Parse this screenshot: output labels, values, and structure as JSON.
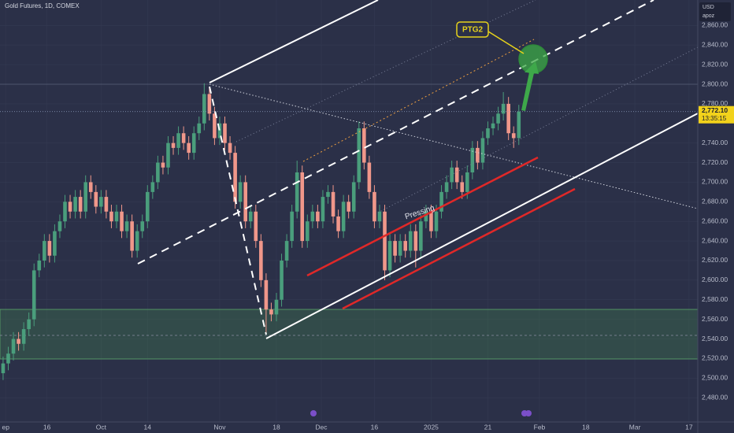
{
  "chart_data": {
    "type": "candlestick",
    "title": "Gold Futures, 1D, COMEX",
    "currency": "USD",
    "account": "apoz",
    "annotations": [
      "PTG2",
      "Pressing"
    ],
    "last_price": {
      "value": 2772.1,
      "label": "2,772.10"
    },
    "countdown": "13:35:15",
    "up_color": "#4a9e7c",
    "down_color": "#f0978a",
    "xlim": [
      -0.6,
      134.7
    ],
    "ylim": [
      2452,
      2886
    ],
    "xticks": [
      {
        "value": 0.5,
        "label": "ep"
      },
      {
        "value": 8.5,
        "label": "16"
      },
      {
        "value": 19,
        "label": "Oct"
      },
      {
        "value": 28,
        "label": "14"
      },
      {
        "value": 42,
        "label": "Nov"
      },
      {
        "value": 53,
        "label": "18"
      },
      {
        "value": 61.7,
        "label": "Dec"
      },
      {
        "value": 72,
        "label": "16"
      },
      {
        "value": 83,
        "label": "2025"
      },
      {
        "value": 94,
        "label": "21"
      },
      {
        "value": 104,
        "label": "Feb"
      },
      {
        "value": 113,
        "label": "18"
      },
      {
        "value": 122.5,
        "label": "Mar"
      },
      {
        "value": 133,
        "label": "17"
      }
    ],
    "yticks": [
      {
        "value": 2480,
        "label": "2,480.00"
      },
      {
        "value": 2500,
        "label": "2,500.00"
      },
      {
        "value": 2520,
        "label": "2,520.00"
      },
      {
        "value": 2540,
        "label": "2,540.00"
      },
      {
        "value": 2560,
        "label": "2,560.00"
      },
      {
        "value": 2580,
        "label": "2,580.00"
      },
      {
        "value": 2600,
        "label": "2,600.00"
      },
      {
        "value": 2620,
        "label": "2,620.00"
      },
      {
        "value": 2640,
        "label": "2,640.00"
      },
      {
        "value": 2660,
        "label": "2,660.00"
      },
      {
        "value": 2680,
        "label": "2,680.00"
      },
      {
        "value": 2700,
        "label": "2,700.00"
      },
      {
        "value": 2720,
        "label": "2,720.00"
      },
      {
        "value": 2740,
        "label": "2,740.00"
      },
      {
        "value": 2780,
        "label": "2,780.00"
      },
      {
        "value": 2800,
        "label": "2,800.00"
      },
      {
        "value": 2820,
        "label": "2,820.00"
      },
      {
        "value": 2840,
        "label": "2,840.00"
      },
      {
        "value": 2860,
        "label": "2,860.00"
      }
    ],
    "open": [
      2505,
      2515,
      2525,
      2540,
      2535,
      2550,
      2560,
      2610,
      2620,
      2640,
      2625,
      2650,
      2660,
      2680,
      2670,
      2685,
      2670,
      2700,
      2690,
      2675,
      2685,
      2670,
      2660,
      2670,
      2650,
      2660,
      2630,
      2650,
      2660,
      2690,
      2700,
      2720,
      2715,
      2740,
      2735,
      2750,
      2740,
      2730,
      2750,
      2760,
      2790,
      2770,
      2745,
      2760,
      2740,
      2730,
      2680,
      2700,
      2660,
      2670,
      2640,
      2600,
      2570,
      2565,
      2580,
      2620,
      2640,
      2670,
      2710,
      2640,
      2660,
      2670,
      2660,
      2685,
      2690,
      2665,
      2650,
      2680,
      2670,
      2700,
      2755,
      2720,
      2690,
      2660,
      2670,
      2610,
      2640,
      2625,
      2640,
      2630,
      2650,
      2630,
      2660,
      2670,
      2650,
      2670,
      2690,
      2700,
      2715,
      2700,
      2690,
      2710,
      2735,
      2720,
      2745,
      2755,
      2760,
      2770,
      2780,
      2750,
      2745
    ],
    "high": [
      2522,
      2532,
      2547,
      2547,
      2557,
      2567,
      2617,
      2627,
      2647,
      2647,
      2657,
      2667,
      2687,
      2687,
      2692,
      2692,
      2707,
      2707,
      2697,
      2692,
      2692,
      2677,
      2677,
      2677,
      2667,
      2667,
      2657,
      2667,
      2697,
      2707,
      2727,
      2727,
      2747,
      2747,
      2757,
      2757,
      2747,
      2757,
      2767,
      2801,
      2797,
      2777,
      2767,
      2767,
      2747,
      2737,
      2707,
      2707,
      2677,
      2677,
      2647,
      2607,
      2577,
      2587,
      2627,
      2647,
      2677,
      2722,
      2717,
      2667,
      2677,
      2677,
      2692,
      2697,
      2697,
      2672,
      2687,
      2687,
      2707,
      2762,
      2762,
      2727,
      2697,
      2677,
      2677,
      2647,
      2647,
      2647,
      2647,
      2657,
      2657,
      2667,
      2677,
      2677,
      2677,
      2697,
      2707,
      2722,
      2722,
      2707,
      2717,
      2742,
      2742,
      2752,
      2762,
      2767,
      2777,
      2792,
      2787,
      2757,
      2779
    ],
    "low": [
      2498,
      2508,
      2518,
      2528,
      2528,
      2543,
      2553,
      2603,
      2613,
      2618,
      2618,
      2643,
      2653,
      2663,
      2663,
      2663,
      2663,
      2683,
      2668,
      2668,
      2663,
      2653,
      2653,
      2643,
      2643,
      2623,
      2623,
      2643,
      2653,
      2683,
      2693,
      2708,
      2708,
      2728,
      2728,
      2733,
      2723,
      2723,
      2743,
      2753,
      2763,
      2738,
      2738,
      2733,
      2723,
      2673,
      2673,
      2653,
      2653,
      2633,
      2593,
      2545,
      2558,
      2558,
      2573,
      2613,
      2633,
      2663,
      2633,
      2633,
      2653,
      2653,
      2653,
      2678,
      2658,
      2643,
      2643,
      2663,
      2663,
      2693,
      2713,
      2683,
      2653,
      2653,
      2600,
      2603,
      2618,
      2618,
      2623,
      2623,
      2613,
      2623,
      2653,
      2643,
      2643,
      2663,
      2683,
      2693,
      2693,
      2683,
      2683,
      2703,
      2713,
      2713,
      2738,
      2748,
      2753,
      2763,
      2743,
      2735,
      2738
    ],
    "close": [
      2515,
      2525,
      2540,
      2535,
      2550,
      2560,
      2610,
      2620,
      2640,
      2625,
      2650,
      2660,
      2680,
      2670,
      2685,
      2670,
      2700,
      2690,
      2675,
      2685,
      2670,
      2660,
      2670,
      2650,
      2660,
      2630,
      2650,
      2660,
      2690,
      2700,
      2720,
      2715,
      2740,
      2735,
      2750,
      2740,
      2730,
      2750,
      2760,
      2790,
      2770,
      2745,
      2760,
      2740,
      2730,
      2680,
      2700,
      2660,
      2670,
      2640,
      2600,
      2570,
      2565,
      2580,
      2620,
      2640,
      2670,
      2710,
      2640,
      2660,
      2670,
      2660,
      2685,
      2690,
      2665,
      2650,
      2680,
      2670,
      2700,
      2755,
      2720,
      2690,
      2660,
      2670,
      2610,
      2640,
      2625,
      2640,
      2630,
      2650,
      2630,
      2660,
      2670,
      2650,
      2670,
      2690,
      2700,
      2715,
      2700,
      2690,
      2710,
      2735,
      2720,
      2745,
      2755,
      2760,
      2770,
      2780,
      2750,
      2745,
      2772
    ]
  }
}
